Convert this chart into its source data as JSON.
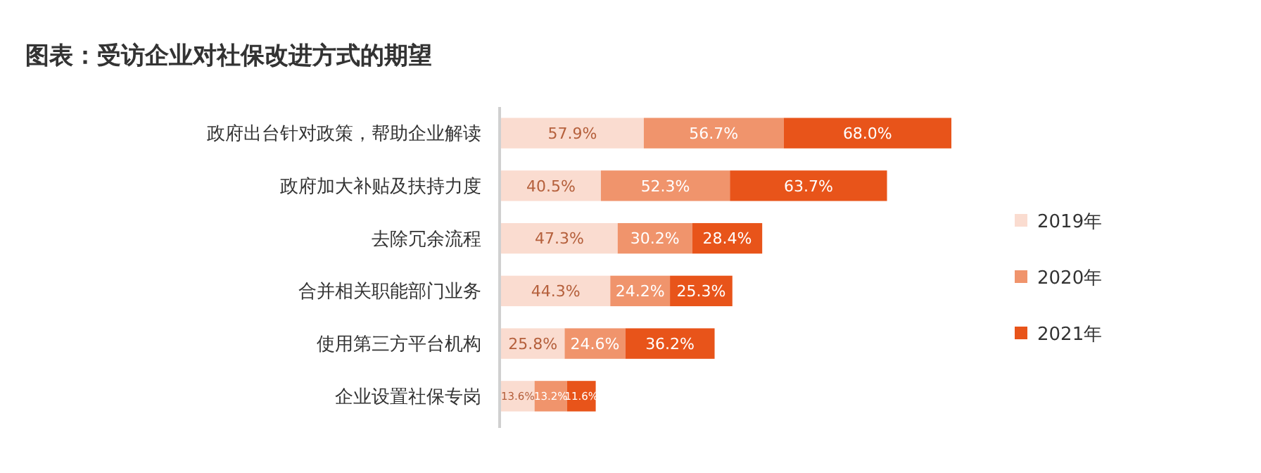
{
  "chart_data": {
    "type": "bar",
    "orientation": "horizontal",
    "stacked": true,
    "title": "图表：受访企业对社保改进方式的期望",
    "categories": [
      "政府出台针对政策，帮助企业解读",
      "政府加大补贴及扶持力度",
      "去除冗余流程",
      "合并相关职能部门业务",
      "使用第三方平台机构",
      "企业设置社保专岗"
    ],
    "series": [
      {
        "name": "2019年",
        "color": "#fadcd0",
        "values": [
          57.9,
          40.5,
          47.3,
          44.3,
          25.8,
          13.6
        ],
        "value_labels": [
          "57.9%",
          "40.5%",
          "47.3%",
          "44.3%",
          "25.8%",
          "13.6%"
        ]
      },
      {
        "name": "2020年",
        "color": "#f0946c",
        "values": [
          56.7,
          52.3,
          30.2,
          24.2,
          24.6,
          13.2
        ],
        "value_labels": [
          "56.7%",
          "52.3%",
          "30.2%",
          "24.2%",
          "24.6%",
          "13.2%"
        ]
      },
      {
        "name": "2021年",
        "color": "#e8541a",
        "values": [
          68.0,
          63.7,
          28.4,
          25.3,
          36.2,
          11.6
        ],
        "value_labels": [
          "68.0%",
          "63.7%",
          "28.4%",
          "25.3%",
          "36.2%",
          "11.6%"
        ]
      }
    ],
    "legend": "right",
    "grid": false
  }
}
